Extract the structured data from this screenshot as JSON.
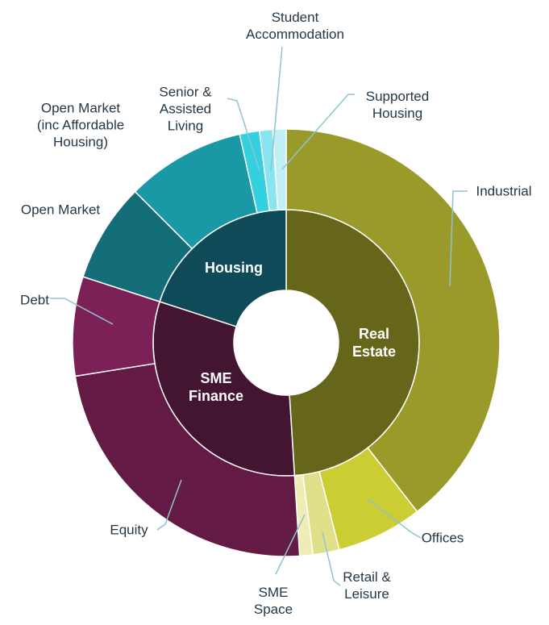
{
  "chart_data": {
    "type": "sunburst",
    "groups": [
      {
        "name": "Real Estate",
        "color": "#66661a",
        "value": 49,
        "children": [
          {
            "name": "Industrial",
            "color": "#9a9a2a",
            "value": 39.5
          },
          {
            "name": "Offices",
            "color": "#cccc33",
            "value": 6.5
          },
          {
            "name": "Retail & Leisure",
            "color": "#e0e08a",
            "value": 2
          },
          {
            "name": "SME Space",
            "color": "#eeeeb4",
            "value": 1
          }
        ]
      },
      {
        "name": "SME Finance",
        "color": "#431530",
        "value": 31,
        "children": [
          {
            "name": "Equity",
            "color": "#631a45",
            "value": 23.5
          },
          {
            "name": "Debt",
            "color": "#7c2158",
            "value": 7.5
          }
        ]
      },
      {
        "name": "Housing",
        "color": "#0e4a57",
        "value": 20,
        "children": [
          {
            "name": "Open Market",
            "color": "#136e7a",
            "value": 7.5
          },
          {
            "name": "Open Market (inc Affordable Housing)",
            "color": "#1a98a6",
            "value": 9
          },
          {
            "name": "Senior & Assisted Living",
            "color": "#33d0e0",
            "value": 1.5
          },
          {
            "name": "Student Accommodation",
            "color": "#88e4ee",
            "value": 1
          },
          {
            "name": "Supported Housing",
            "color": "#c0f0f5",
            "value": 1
          }
        ]
      }
    ]
  }
}
